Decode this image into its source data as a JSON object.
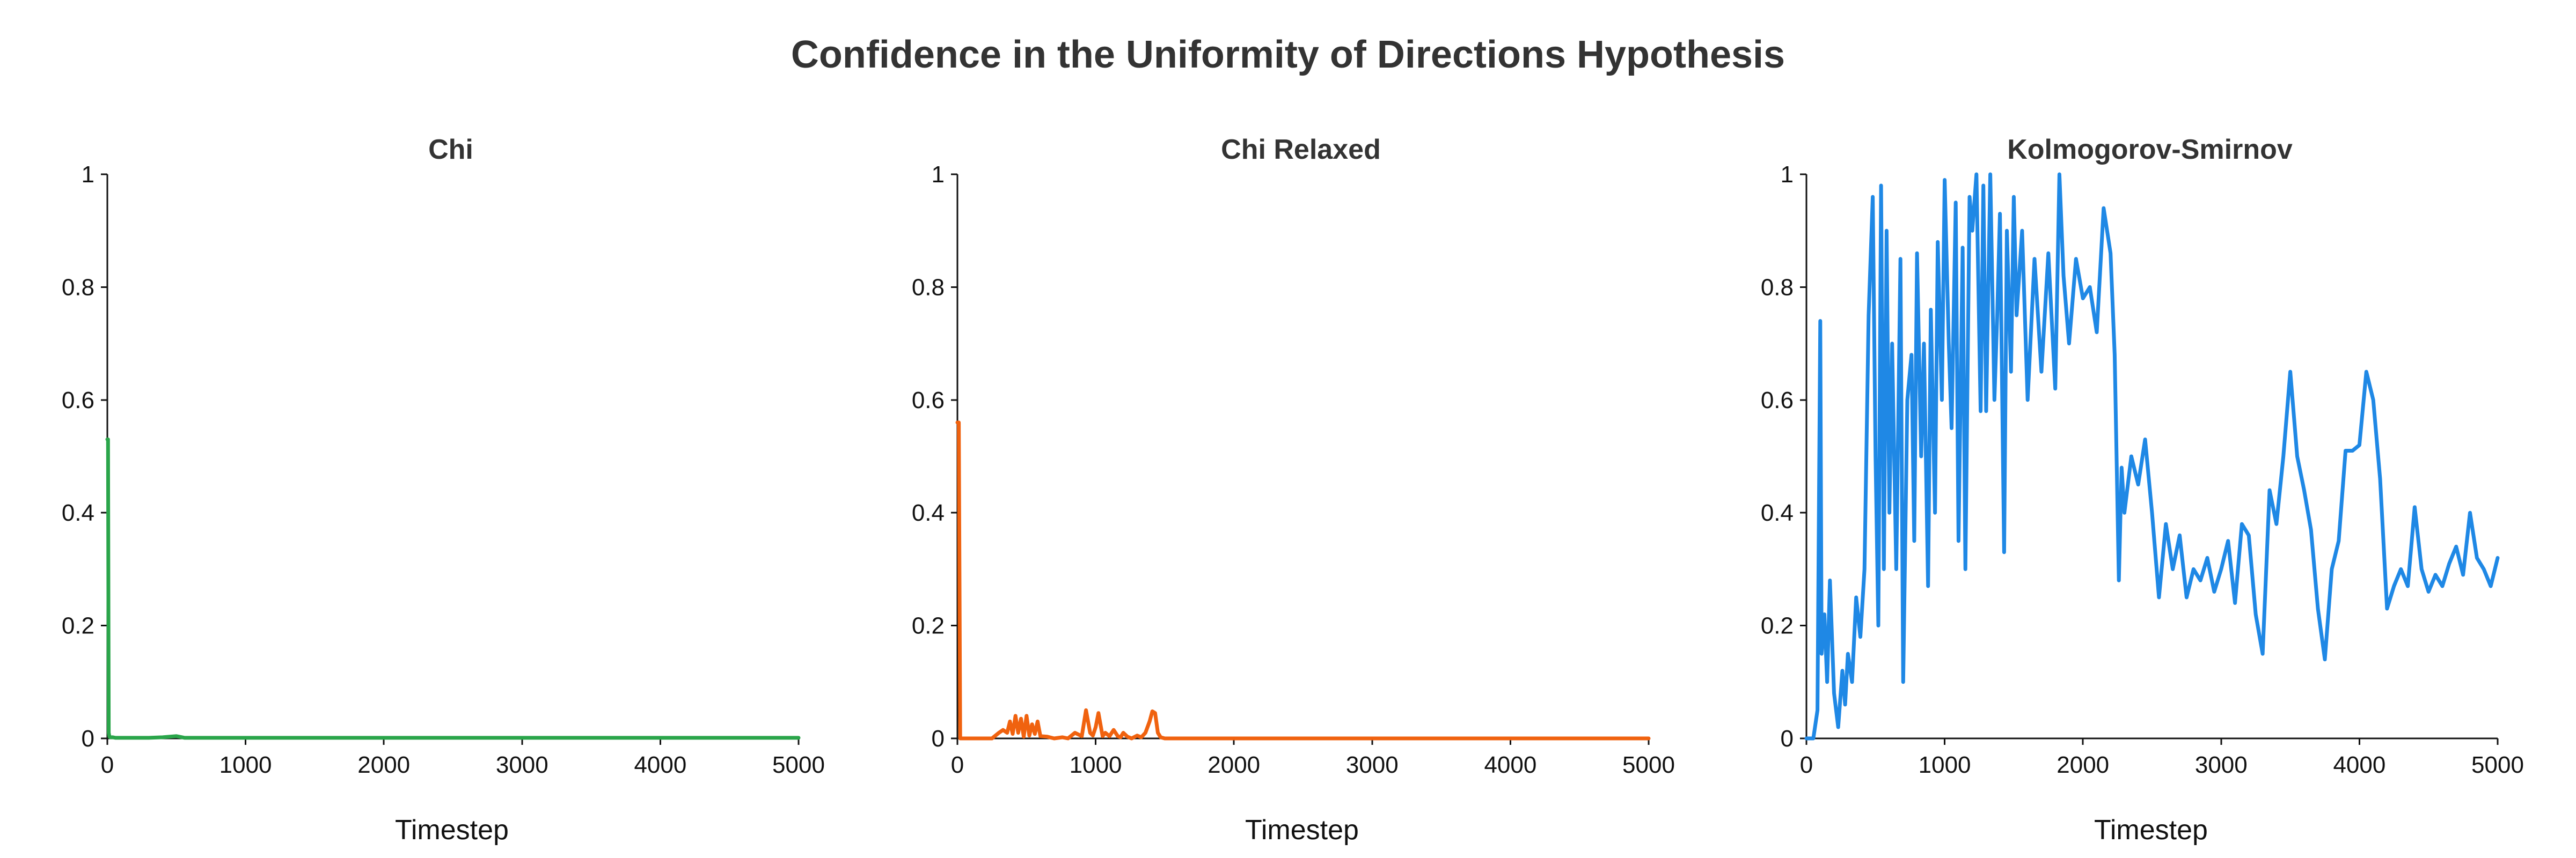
{
  "figure": {
    "title": "Confidence in the Uniformity of Directions Hypothesis"
  },
  "chart_data": [
    {
      "type": "line",
      "title": "Chi",
      "xlabel": "Timestep",
      "ylabel": "",
      "xlim": [
        0,
        5000
      ],
      "ylim": [
        0,
        1
      ],
      "xticks": [
        0,
        1000,
        2000,
        3000,
        4000,
        5000
      ],
      "yticks": [
        0,
        0.2,
        0.4,
        0.6,
        0.8,
        1
      ],
      "xtick_labels": [
        "0",
        "1000",
        "2000",
        "3000",
        "4000",
        "5000"
      ],
      "ytick_labels": [
        "0",
        "0.2",
        "0.4",
        "0.6",
        "0.8",
        "1"
      ],
      "grid": false,
      "series": [
        {
          "color": "#2aa54a",
          "x": [
            0,
            5,
            10,
            15,
            20,
            30,
            40,
            60,
            100,
            200,
            300,
            400,
            500,
            520,
            560,
            700,
            900,
            1200,
            1500,
            2000,
            2500,
            3000,
            3500,
            4000,
            4500,
            5000
          ],
          "y": [
            0.53,
            0.53,
            0.01,
            0.003,
            0.002,
            0.002,
            0.002,
            0.001,
            0.001,
            0.001,
            0.001,
            0.002,
            0.004,
            0.003,
            0.001,
            0.001,
            0.001,
            0.001,
            0.001,
            0.001,
            0.001,
            0.001,
            0.001,
            0.001,
            0.001,
            0.001
          ]
        }
      ]
    },
    {
      "type": "line",
      "title": "Chi Relaxed",
      "xlabel": "Timestep",
      "ylabel": "",
      "xlim": [
        0,
        5000
      ],
      "ylim": [
        0,
        1
      ],
      "xticks": [
        0,
        1000,
        2000,
        3000,
        4000,
        5000
      ],
      "yticks": [
        0,
        0.2,
        0.4,
        0.6,
        0.8,
        1
      ],
      "xtick_labels": [
        "0",
        "1000",
        "2000",
        "3000",
        "4000",
        "5000"
      ],
      "ytick_labels": [
        "0",
        "0.2",
        "0.4",
        "0.6",
        "0.8",
        "1"
      ],
      "grid": false,
      "series": [
        {
          "color": "#f0620f",
          "x": [
            0,
            10,
            20,
            30,
            60,
            120,
            250,
            300,
            330,
            360,
            380,
            400,
            420,
            440,
            460,
            480,
            500,
            520,
            540,
            560,
            580,
            600,
            650,
            700,
            760,
            800,
            850,
            900,
            930,
            960,
            980,
            1000,
            1020,
            1050,
            1070,
            1100,
            1130,
            1160,
            1180,
            1200,
            1230,
            1260,
            1300,
            1330,
            1360,
            1390,
            1410,
            1430,
            1450,
            1470,
            1500,
            1550,
            1600,
            1700,
            2000,
            3000,
            4000,
            5000
          ],
          "y": [
            0.56,
            0.56,
            0.0,
            0.0,
            0.0,
            0.0,
            0.0,
            0.01,
            0.015,
            0.01,
            0.03,
            0.008,
            0.04,
            0.01,
            0.035,
            0.003,
            0.04,
            0.005,
            0.025,
            0.008,
            0.03,
            0.004,
            0.003,
            0.0,
            0.002,
            0.0,
            0.01,
            0.004,
            0.05,
            0.01,
            0.005,
            0.02,
            0.045,
            0.004,
            0.01,
            0.004,
            0.015,
            0.004,
            0.002,
            0.01,
            0.003,
            0.0,
            0.005,
            0.002,
            0.01,
            0.03,
            0.048,
            0.045,
            0.01,
            0.002,
            0.0,
            0.0,
            0.0,
            0.0,
            0.0,
            0.0,
            0.0,
            0.0
          ]
        }
      ]
    },
    {
      "type": "line",
      "title": "Kolmogorov-Smirnov",
      "xlabel": "Timestep",
      "ylabel": "",
      "xlim": [
        0,
        5000
      ],
      "ylim": [
        0,
        1
      ],
      "xticks": [
        0,
        1000,
        2000,
        3000,
        4000,
        5000
      ],
      "yticks": [
        0,
        0.2,
        0.4,
        0.6,
        0.8,
        1
      ],
      "xtick_labels": [
        "0",
        "1000",
        "2000",
        "3000",
        "4000",
        "5000"
      ],
      "ytick_labels": [
        "0",
        "0.2",
        "0.4",
        "0.6",
        "0.8",
        "1"
      ],
      "grid": false,
      "series": [
        {
          "color": "#1f88e5",
          "x": [
            0,
            50,
            80,
            100,
            110,
            130,
            150,
            170,
            200,
            230,
            260,
            280,
            300,
            330,
            360,
            390,
            420,
            450,
            480,
            500,
            520,
            540,
            560,
            580,
            600,
            620,
            650,
            680,
            700,
            730,
            760,
            780,
            800,
            830,
            850,
            880,
            900,
            930,
            950,
            980,
            1000,
            1030,
            1050,
            1080,
            1100,
            1130,
            1150,
            1180,
            1200,
            1230,
            1260,
            1280,
            1300,
            1330,
            1360,
            1380,
            1400,
            1430,
            1450,
            1480,
            1500,
            1520,
            1560,
            1600,
            1650,
            1700,
            1750,
            1800,
            1830,
            1860,
            1900,
            1950,
            2000,
            2050,
            2100,
            2150,
            2200,
            2230,
            2260,
            2280,
            2300,
            2350,
            2400,
            2450,
            2500,
            2550,
            2600,
            2650,
            2700,
            2750,
            2800,
            2850,
            2900,
            2950,
            3000,
            3050,
            3100,
            3150,
            3200,
            3250,
            3300,
            3350,
            3400,
            3450,
            3500,
            3550,
            3600,
            3650,
            3700,
            3750,
            3800,
            3850,
            3900,
            3950,
            4000,
            4050,
            4100,
            4150,
            4200,
            4250,
            4300,
            4350,
            4400,
            4450,
            4500,
            4550,
            4600,
            4650,
            4700,
            4750,
            4800,
            4850,
            4900,
            4950,
            5000
          ],
          "y": [
            0.0,
            0.0,
            0.05,
            0.74,
            0.15,
            0.22,
            0.1,
            0.28,
            0.08,
            0.02,
            0.12,
            0.06,
            0.15,
            0.1,
            0.25,
            0.18,
            0.3,
            0.75,
            0.96,
            0.5,
            0.2,
            0.98,
            0.3,
            0.9,
            0.4,
            0.7,
            0.3,
            0.85,
            0.1,
            0.6,
            0.68,
            0.35,
            0.86,
            0.5,
            0.7,
            0.27,
            0.76,
            0.4,
            0.88,
            0.6,
            0.99,
            0.7,
            0.55,
            0.95,
            0.35,
            0.87,
            0.3,
            0.96,
            0.9,
            1.0,
            0.58,
            0.98,
            0.58,
            1.0,
            0.6,
            0.75,
            0.93,
            0.33,
            0.9,
            0.65,
            0.96,
            0.75,
            0.9,
            0.6,
            0.85,
            0.65,
            0.86,
            0.62,
            1.0,
            0.82,
            0.7,
            0.85,
            0.78,
            0.8,
            0.72,
            0.94,
            0.86,
            0.68,
            0.28,
            0.48,
            0.4,
            0.5,
            0.45,
            0.53,
            0.4,
            0.25,
            0.38,
            0.3,
            0.36,
            0.25,
            0.3,
            0.28,
            0.32,
            0.26,
            0.3,
            0.35,
            0.24,
            0.38,
            0.36,
            0.22,
            0.15,
            0.44,
            0.38,
            0.5,
            0.65,
            0.5,
            0.44,
            0.37,
            0.23,
            0.14,
            0.3,
            0.35,
            0.51,
            0.51,
            0.52,
            0.65,
            0.6,
            0.46,
            0.23,
            0.27,
            0.3,
            0.27,
            0.41,
            0.3,
            0.26,
            0.29,
            0.27,
            0.31,
            0.34,
            0.29,
            0.4,
            0.32,
            0.3,
            0.27,
            0.32
          ]
        }
      ]
    }
  ]
}
